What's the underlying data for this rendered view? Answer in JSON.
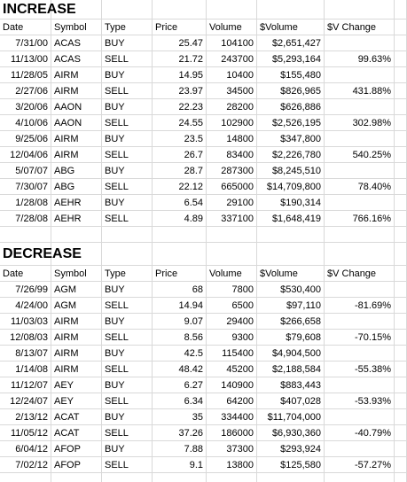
{
  "sections": [
    {
      "title": "INCREASE",
      "header": [
        "Date",
        "Symbol",
        "Type",
        "Price",
        "Volume",
        "$Volume",
        "$V Change"
      ],
      "rows": [
        [
          "7/31/00",
          "ACAS",
          "BUY",
          "25.47",
          "104100",
          "$2,651,427",
          null
        ],
        [
          "11/13/00",
          "ACAS",
          "SELL",
          "21.72",
          "243700",
          "$5,293,164",
          "99.63%"
        ],
        [
          "11/28/05",
          "AIRM",
          "BUY",
          "14.95",
          "10400",
          "$155,480",
          null
        ],
        [
          "2/27/06",
          "AIRM",
          "SELL",
          "23.97",
          "34500",
          "$826,965",
          "431.88%"
        ],
        [
          "3/20/06",
          "AAON",
          "BUY",
          "22.23",
          "28200",
          "$626,886",
          null
        ],
        [
          "4/10/06",
          "AAON",
          "SELL",
          "24.55",
          "102900",
          "$2,526,195",
          "302.98%"
        ],
        [
          "9/25/06",
          "AIRM",
          "BUY",
          "23.5",
          "14800",
          "$347,800",
          null
        ],
        [
          "12/04/06",
          "AIRM",
          "SELL",
          "26.7",
          "83400",
          "$2,226,780",
          "540.25%"
        ],
        [
          "5/07/07",
          "ABG",
          "BUY",
          "28.7",
          "287300",
          "$8,245,510",
          null
        ],
        [
          "7/30/07",
          "ABG",
          "SELL",
          "22.12",
          "665000",
          "$14,709,800",
          "78.40%"
        ],
        [
          "1/28/08",
          "AEHR",
          "BUY",
          "6.54",
          "29100",
          "$190,314",
          null
        ],
        [
          "7/28/08",
          "AEHR",
          "SELL",
          "4.89",
          "337100",
          "$1,648,419",
          "766.16%"
        ]
      ]
    },
    {
      "title": "DECREASE",
      "header": [
        "Date",
        "Symbol",
        "Type",
        "Price",
        "Volume",
        "$Volume",
        "$V Change"
      ],
      "rows": [
        [
          "7/26/99",
          "AGM",
          "BUY",
          "68",
          "7800",
          "$530,400",
          null
        ],
        [
          "4/24/00",
          "AGM",
          "SELL",
          "14.94",
          "6500",
          "$97,110",
          "-81.69%"
        ],
        [
          "11/03/03",
          "AIRM",
          "BUY",
          "9.07",
          "29400",
          "$266,658",
          null
        ],
        [
          "12/08/03",
          "AIRM",
          "SELL",
          "8.56",
          "9300",
          "$79,608",
          "-70.15%"
        ],
        [
          "8/13/07",
          "AIRM",
          "BUY",
          "42.5",
          "115400",
          "$4,904,500",
          null
        ],
        [
          "1/14/08",
          "AIRM",
          "SELL",
          "48.42",
          "45200",
          "$2,188,584",
          "-55.38%"
        ],
        [
          "11/12/07",
          "AEY",
          "BUY",
          "6.27",
          "140900",
          "$883,443",
          null
        ],
        [
          "12/24/07",
          "AEY",
          "SELL",
          "6.34",
          "64200",
          "$407,028",
          "-53.93%"
        ],
        [
          "2/13/12",
          "ACAT",
          "BUY",
          "35",
          "334400",
          "$11,704,000",
          null
        ],
        [
          "11/05/12",
          "ACAT",
          "SELL",
          "37.26",
          "186000",
          "$6,930,360",
          "-40.79%"
        ],
        [
          "6/04/12",
          "AFOP",
          "BUY",
          "7.88",
          "37300",
          "$293,924",
          null
        ],
        [
          "7/02/12",
          "AFOP",
          "SELL",
          "9.1",
          "13800",
          "$125,580",
          "-57.27%"
        ]
      ]
    }
  ]
}
